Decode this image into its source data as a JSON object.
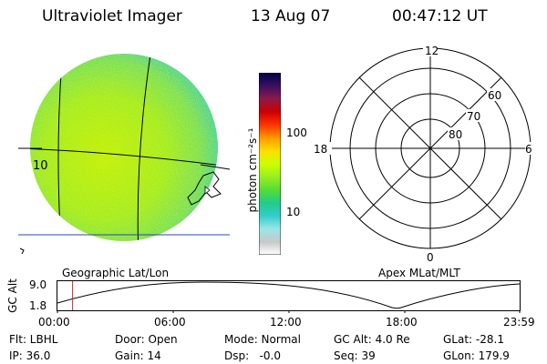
{
  "header": {
    "title": "Ultraviolet Imager",
    "date": "13 Aug 07",
    "time": "00:47:12 UT"
  },
  "colorbar": {
    "unit_label": "photon cm⁻²s⁻¹",
    "tick_100": "100",
    "tick_10": "10",
    "stops": [
      "#ffffff",
      "#c8c8c8",
      "#9ae6e6",
      "#33cccc",
      "#22cc88",
      "#55dd33",
      "#99ee22",
      "#ccff00",
      "#ffdd00",
      "#ff9900",
      "#ff3300",
      "#cc0000",
      "#8b1a4a",
      "#3a1060",
      "#000044"
    ]
  },
  "globe": {
    "label": "Geographic Lat/Lon",
    "marker_text": "10"
  },
  "polar": {
    "label": "Apex MLat/MLT",
    "mlt_top": "12",
    "mlt_left": "18",
    "mlt_right": "6",
    "mlt_bottom": "0",
    "lat_60": "60",
    "lat_70": "70",
    "lat_80": "80"
  },
  "altitude_plot": {
    "ylabel": "GC Alt",
    "y_top": "9.0",
    "y_bottom": "1.8",
    "x_ticks": [
      "00:00",
      "06:00",
      "12:00",
      "18:00",
      "23:59"
    ],
    "marker_time_hours": 0.787
  },
  "info": {
    "flt": "Flt: LBHL",
    "ip": "IP: 36.0",
    "door": "Door: Open",
    "gain": "Gain: 14",
    "mode": "Mode: Normal",
    "dsp": "Dsp:   -0.0",
    "gc_alt": "GC Alt: 4.0 Re",
    "seq": "Seq: 39",
    "glat": "GLat: -28.1",
    "glon": "GLon: 179.9"
  }
}
